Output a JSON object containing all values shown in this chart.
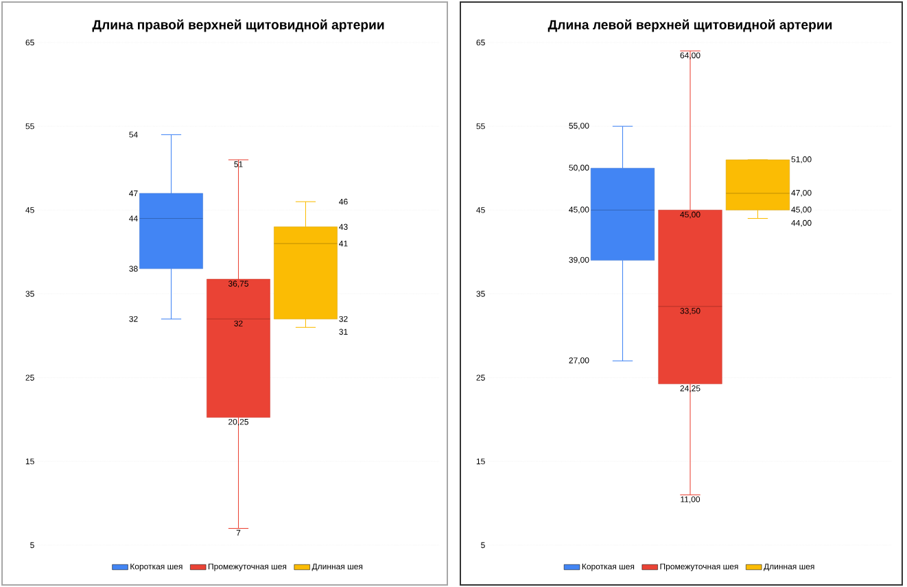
{
  "chart_data": [
    {
      "type": "box",
      "title": "Длина правой верхней щитовидной артерии",
      "categories": [
        null
      ],
      "ylim": [
        5,
        65
      ],
      "yticks": [
        5,
        15,
        25,
        35,
        45,
        55,
        65
      ],
      "grid": "y",
      "legend": "bottom",
      "tick_labels": "y",
      "series": [
        {
          "name": "Короткая шея",
          "color": "#4285f4",
          "boxes": [
            {
              "low": 32,
              "q1": 38,
              "median": 44,
              "q3": 47,
              "high": 54
            }
          ],
          "value_labels": [
            [
              "32",
              "38",
              "44",
              "47",
              "54"
            ]
          ]
        },
        {
          "name": "Промежуточная шея",
          "color": "#ea4335",
          "boxes": [
            {
              "low": 7,
              "q1": 20.25,
              "median": 32,
              "q3": 36.75,
              "high": 51
            }
          ],
          "value_labels": [
            [
              "7",
              "20,25",
              "32",
              "36,75",
              "51"
            ]
          ]
        },
        {
          "name": "Длинная шея",
          "color": "#fbbc04",
          "boxes": [
            {
              "low": 31,
              "q1": 32,
              "median": 41,
              "q3": 43,
              "high": 46
            }
          ],
          "value_labels": [
            [
              "31",
              "32",
              "41",
              "43",
              "46"
            ]
          ]
        }
      ]
    },
    {
      "type": "box",
      "title": "Длина левой верхней щитовидной артерии",
      "categories": [
        null
      ],
      "ylim": [
        5,
        65
      ],
      "yticks": [
        5,
        15,
        25,
        35,
        45,
        55,
        65
      ],
      "grid": "y",
      "legend": "bottom",
      "tick_labels": "y",
      "series": [
        {
          "name": "Короткая шея",
          "color": "#4285f4",
          "boxes": [
            {
              "low": 27,
              "q1": 39,
              "median": 45,
              "q3": 50,
              "high": 55
            }
          ],
          "value_labels": [
            [
              "27,00",
              "39,00",
              "45,00",
              "50,00",
              "55,00"
            ]
          ]
        },
        {
          "name": "Промежуточная шея",
          "color": "#ea4335",
          "boxes": [
            {
              "low": 11,
              "q1": 24.25,
              "median": 33.5,
              "q3": 45,
              "high": 64
            }
          ],
          "value_labels": [
            [
              "11,00",
              "24,25",
              "33,50",
              "45,00",
              "64,00"
            ]
          ]
        },
        {
          "name": "Длинная шея",
          "color": "#fbbc04",
          "boxes": [
            {
              "low": 44,
              "q1": 45,
              "median": 47,
              "q3": 51,
              "high": 51
            }
          ],
          "value_labels": [
            [
              "44,00",
              "45,00",
              "47,00",
              "51,00",
              null
            ]
          ]
        }
      ]
    }
  ]
}
